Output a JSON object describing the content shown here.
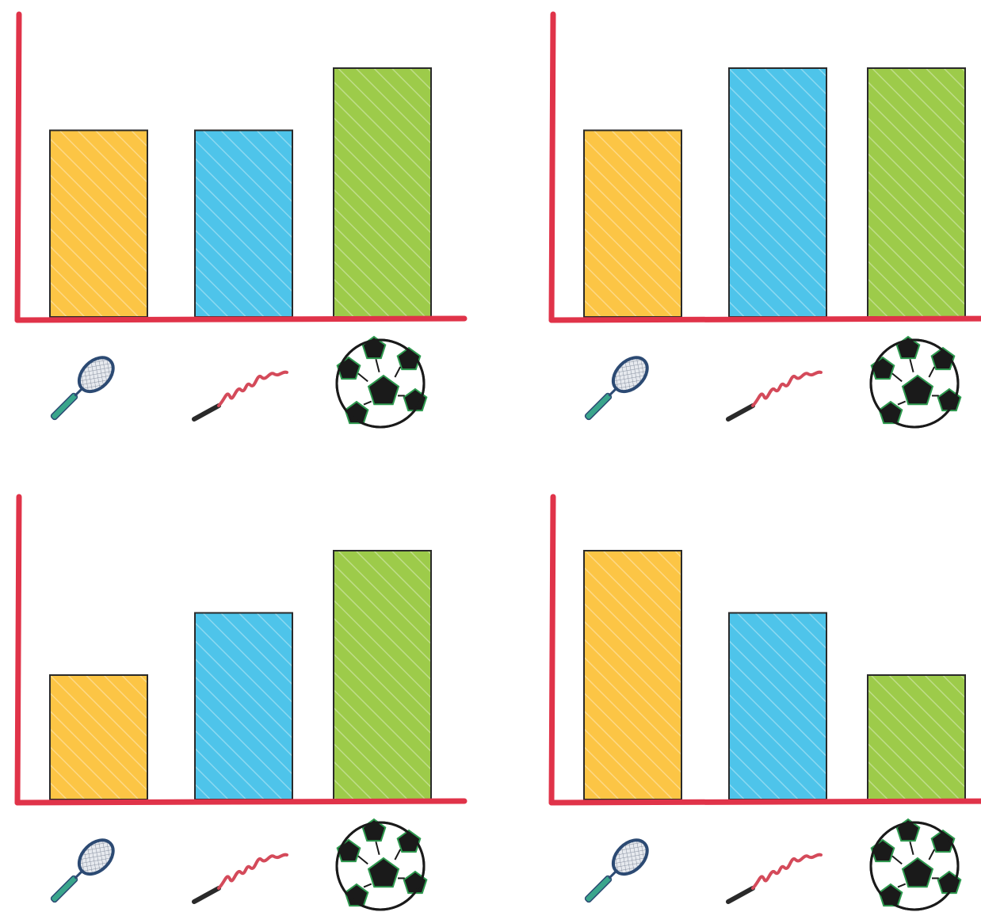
{
  "chart_data": [
    {
      "type": "bar",
      "categories": [
        "racket-icon",
        "jump-rope-icon",
        "soccer-ball-icon"
      ],
      "values": [
        3,
        3,
        4
      ],
      "ylim": [
        0,
        5
      ],
      "grid": false
    },
    {
      "type": "bar",
      "categories": [
        "racket-icon",
        "jump-rope-icon",
        "soccer-ball-icon"
      ],
      "values": [
        3,
        4,
        4
      ],
      "ylim": [
        0,
        5
      ],
      "grid": false
    },
    {
      "type": "bar",
      "categories": [
        "racket-icon",
        "jump-rope-icon",
        "soccer-ball-icon"
      ],
      "values": [
        2,
        3,
        4
      ],
      "ylim": [
        0,
        5
      ],
      "grid": false
    },
    {
      "type": "bar",
      "categories": [
        "racket-icon",
        "jump-rope-icon",
        "soccer-ball-icon"
      ],
      "values": [
        4,
        3,
        2
      ],
      "ylim": [
        0,
        5
      ],
      "grid": false
    }
  ],
  "colors": {
    "axis": "#e03349",
    "bar_outline": "#2a2a2a",
    "bars": [
      "#fcc545",
      "#4ec4ea",
      "#9dcb4a"
    ],
    "racket_frame": "#2c4a73",
    "racket_handle": "#3aa58c",
    "rope": "#d44a5a",
    "rope_handle": "#2a2a2a",
    "ball_outline": "#1a1a1a",
    "ball_accent": "#2e9a4f"
  }
}
